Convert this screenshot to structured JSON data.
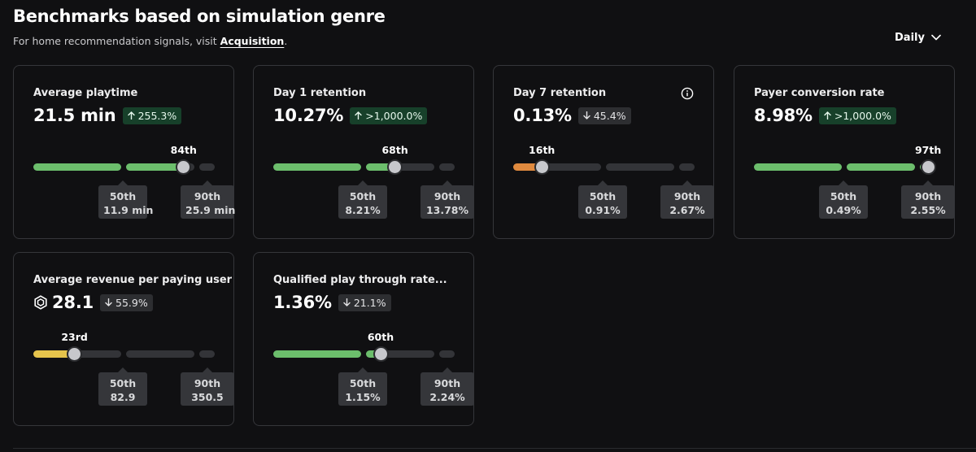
{
  "header": {
    "title": "Benchmarks based on simulation genre",
    "subtitle_prefix": "For home recommendation signals, visit ",
    "subtitle_link": "Acquisition",
    "subtitle_suffix": ".",
    "period_selector": "Daily"
  },
  "colors": {
    "background": "#101012",
    "card_border": "#35363a",
    "bar_green": "#6cbe6c",
    "bar_orange": "#e08a3e",
    "bar_yellow": "#e6c44c",
    "bar_track": "#333438",
    "delta_up_bg": "#17402a",
    "delta_down_bg": "#2d2e31"
  },
  "cards": [
    {
      "label": "Average playtime",
      "value": "21.5 min",
      "delta": "255.3%",
      "delta_direction": "up",
      "percentile": "84th",
      "percentile_value": 84,
      "bar_color": "green",
      "p50_label": "50th",
      "p50_value": "11.9 min",
      "p90_label": "90th",
      "p90_value": "25.9 min",
      "has_info": false,
      "has_robux": false
    },
    {
      "label": "Day 1 retention",
      "value": "10.27%",
      "delta": ">1,000.0%",
      "delta_direction": "up",
      "percentile": "68th",
      "percentile_value": 68,
      "bar_color": "green",
      "p50_label": "50th",
      "p50_value": "8.21%",
      "p90_label": "90th",
      "p90_value": "13.78%",
      "has_info": false,
      "has_robux": false
    },
    {
      "label": "Day 7 retention",
      "value": "0.13%",
      "delta": "45.4%",
      "delta_direction": "down",
      "percentile": "16th",
      "percentile_value": 16,
      "bar_color": "orange",
      "p50_label": "50th",
      "p50_value": "0.91%",
      "p90_label": "90th",
      "p90_value": "2.67%",
      "has_info": true,
      "has_robux": false
    },
    {
      "label": "Payer conversion rate",
      "value": "8.98%",
      "delta": ">1,000.0%",
      "delta_direction": "up",
      "percentile": "97th",
      "percentile_value": 97,
      "bar_color": "green",
      "p50_label": "50th",
      "p50_value": "0.49%",
      "p90_label": "90th",
      "p90_value": "2.55%",
      "has_info": false,
      "has_robux": false
    },
    {
      "label": "Average revenue per paying user",
      "value": "28.1",
      "delta": "55.9%",
      "delta_direction": "down",
      "percentile": "23rd",
      "percentile_value": 23,
      "bar_color": "yellow",
      "p50_label": "50th",
      "p50_value": "82.9",
      "p90_label": "90th",
      "p90_value": "350.5",
      "has_info": false,
      "has_robux": true
    },
    {
      "label": "Qualified play through rate...",
      "value": "1.36%",
      "delta": "21.1%",
      "delta_direction": "down",
      "percentile": "60th",
      "percentile_value": 60,
      "bar_color": "green",
      "p50_label": "50th",
      "p50_value": "1.15%",
      "p90_label": "90th",
      "p90_value": "2.24%",
      "has_info": false,
      "has_robux": false
    }
  ]
}
